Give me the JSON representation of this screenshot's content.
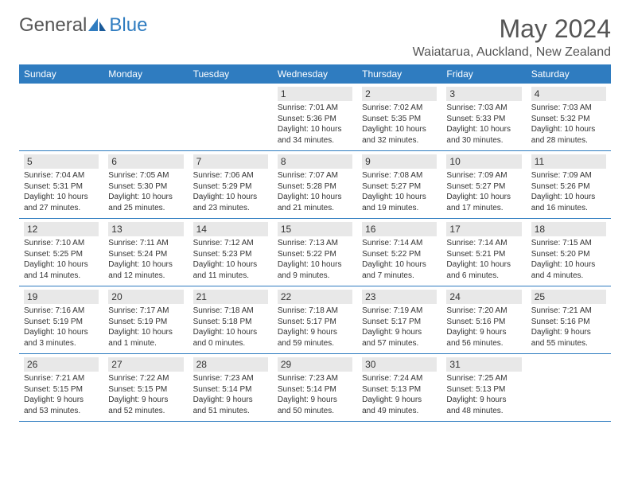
{
  "logo": {
    "text1": "General",
    "text2": "Blue"
  },
  "title": "May 2024",
  "location": "Waiatarua, Auckland, New Zealand",
  "colors": {
    "header_bg": "#2f7cc0",
    "header_text": "#ffffff",
    "daynum_bg": "#e8e8e8",
    "border": "#2f7cc0",
    "text": "#333333"
  },
  "day_headers": [
    "Sunday",
    "Monday",
    "Tuesday",
    "Wednesday",
    "Thursday",
    "Friday",
    "Saturday"
  ],
  "weeks": [
    [
      null,
      null,
      null,
      {
        "n": "1",
        "sr": "7:01 AM",
        "ss": "5:36 PM",
        "dl": "10 hours and 34 minutes."
      },
      {
        "n": "2",
        "sr": "7:02 AM",
        "ss": "5:35 PM",
        "dl": "10 hours and 32 minutes."
      },
      {
        "n": "3",
        "sr": "7:03 AM",
        "ss": "5:33 PM",
        "dl": "10 hours and 30 minutes."
      },
      {
        "n": "4",
        "sr": "7:03 AM",
        "ss": "5:32 PM",
        "dl": "10 hours and 28 minutes."
      }
    ],
    [
      {
        "n": "5",
        "sr": "7:04 AM",
        "ss": "5:31 PM",
        "dl": "10 hours and 27 minutes."
      },
      {
        "n": "6",
        "sr": "7:05 AM",
        "ss": "5:30 PM",
        "dl": "10 hours and 25 minutes."
      },
      {
        "n": "7",
        "sr": "7:06 AM",
        "ss": "5:29 PM",
        "dl": "10 hours and 23 minutes."
      },
      {
        "n": "8",
        "sr": "7:07 AM",
        "ss": "5:28 PM",
        "dl": "10 hours and 21 minutes."
      },
      {
        "n": "9",
        "sr": "7:08 AM",
        "ss": "5:27 PM",
        "dl": "10 hours and 19 minutes."
      },
      {
        "n": "10",
        "sr": "7:09 AM",
        "ss": "5:27 PM",
        "dl": "10 hours and 17 minutes."
      },
      {
        "n": "11",
        "sr": "7:09 AM",
        "ss": "5:26 PM",
        "dl": "10 hours and 16 minutes."
      }
    ],
    [
      {
        "n": "12",
        "sr": "7:10 AM",
        "ss": "5:25 PM",
        "dl": "10 hours and 14 minutes."
      },
      {
        "n": "13",
        "sr": "7:11 AM",
        "ss": "5:24 PM",
        "dl": "10 hours and 12 minutes."
      },
      {
        "n": "14",
        "sr": "7:12 AM",
        "ss": "5:23 PM",
        "dl": "10 hours and 11 minutes."
      },
      {
        "n": "15",
        "sr": "7:13 AM",
        "ss": "5:22 PM",
        "dl": "10 hours and 9 minutes."
      },
      {
        "n": "16",
        "sr": "7:14 AM",
        "ss": "5:22 PM",
        "dl": "10 hours and 7 minutes."
      },
      {
        "n": "17",
        "sr": "7:14 AM",
        "ss": "5:21 PM",
        "dl": "10 hours and 6 minutes."
      },
      {
        "n": "18",
        "sr": "7:15 AM",
        "ss": "5:20 PM",
        "dl": "10 hours and 4 minutes."
      }
    ],
    [
      {
        "n": "19",
        "sr": "7:16 AM",
        "ss": "5:19 PM",
        "dl": "10 hours and 3 minutes."
      },
      {
        "n": "20",
        "sr": "7:17 AM",
        "ss": "5:19 PM",
        "dl": "10 hours and 1 minute."
      },
      {
        "n": "21",
        "sr": "7:18 AM",
        "ss": "5:18 PM",
        "dl": "10 hours and 0 minutes."
      },
      {
        "n": "22",
        "sr": "7:18 AM",
        "ss": "5:17 PM",
        "dl": "9 hours and 59 minutes."
      },
      {
        "n": "23",
        "sr": "7:19 AM",
        "ss": "5:17 PM",
        "dl": "9 hours and 57 minutes."
      },
      {
        "n": "24",
        "sr": "7:20 AM",
        "ss": "5:16 PM",
        "dl": "9 hours and 56 minutes."
      },
      {
        "n": "25",
        "sr": "7:21 AM",
        "ss": "5:16 PM",
        "dl": "9 hours and 55 minutes."
      }
    ],
    [
      {
        "n": "26",
        "sr": "7:21 AM",
        "ss": "5:15 PM",
        "dl": "9 hours and 53 minutes."
      },
      {
        "n": "27",
        "sr": "7:22 AM",
        "ss": "5:15 PM",
        "dl": "9 hours and 52 minutes."
      },
      {
        "n": "28",
        "sr": "7:23 AM",
        "ss": "5:14 PM",
        "dl": "9 hours and 51 minutes."
      },
      {
        "n": "29",
        "sr": "7:23 AM",
        "ss": "5:14 PM",
        "dl": "9 hours and 50 minutes."
      },
      {
        "n": "30",
        "sr": "7:24 AM",
        "ss": "5:13 PM",
        "dl": "9 hours and 49 minutes."
      },
      {
        "n": "31",
        "sr": "7:25 AM",
        "ss": "5:13 PM",
        "dl": "9 hours and 48 minutes."
      },
      null
    ]
  ],
  "labels": {
    "sunrise": "Sunrise:",
    "sunset": "Sunset:",
    "daylight": "Daylight:"
  }
}
